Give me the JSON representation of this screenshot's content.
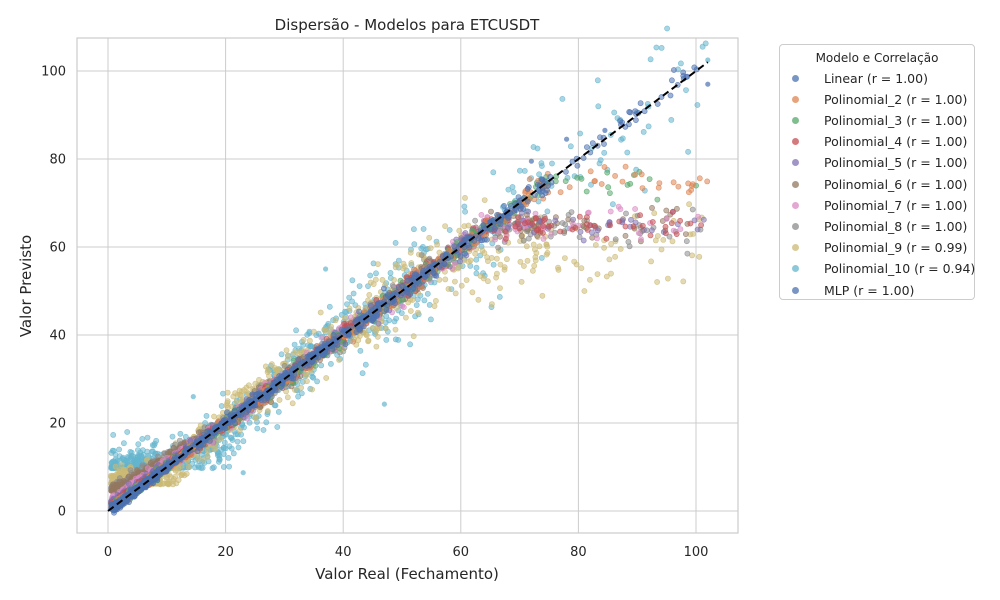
{
  "chart_data": {
    "type": "scatter",
    "title": "Dispersão - Modelos para ETCUSDT",
    "xlabel": "Valor Real (Fechamento)",
    "ylabel": "Valor Previsto",
    "xlim": [
      -5,
      107
    ],
    "ylim": [
      -5,
      107
    ],
    "xticks": [
      0,
      20,
      40,
      60,
      80,
      100
    ],
    "yticks": [
      0,
      20,
      40,
      60,
      80,
      100
    ],
    "grid": true,
    "legend": {
      "title": "Modelo e Correlação",
      "placement": "outside-right"
    },
    "reference_line": {
      "style": "dashed",
      "color": "#000000",
      "from": [
        0,
        0
      ],
      "to": [
        102,
        102
      ]
    },
    "series": [
      {
        "name": "Linear (r = 1.00)",
        "color": "#4c72b0",
        "kind": "linear_noise",
        "noise": 0.6,
        "floor": null,
        "points": [
          [
            1,
            1
          ],
          [
            10,
            10
          ],
          [
            20,
            20
          ],
          [
            30,
            30
          ],
          [
            40,
            40
          ],
          [
            50,
            50
          ],
          [
            60,
            60
          ],
          [
            70,
            70
          ],
          [
            80,
            80
          ],
          [
            102,
            102
          ]
        ]
      },
      {
        "name": "Polinomial_2 (r = 1.00)",
        "color": "#dd8452",
        "kind": "linear_noise",
        "noise": 0.7,
        "floor": null,
        "points": [
          [
            1,
            1
          ],
          [
            15,
            15
          ],
          [
            35,
            35
          ],
          [
            55,
            55
          ],
          [
            75,
            75
          ]
        ]
      },
      {
        "name": "Polinomial_3 (r = 1.00)",
        "color": "#55a868",
        "kind": "linear_noise",
        "noise": 0.7,
        "floor": null,
        "points": [
          [
            1,
            1
          ],
          [
            15,
            15
          ],
          [
            35,
            35
          ],
          [
            55,
            55
          ],
          [
            75,
            75
          ]
        ]
      },
      {
        "name": "Polinomial_4 (r = 1.00)",
        "color": "#c44e52",
        "kind": "linear_noise",
        "noise": 0.7,
        "floor": 1.5,
        "points": [
          [
            1,
            1.5
          ],
          [
            20,
            20
          ],
          [
            45,
            45
          ],
          [
            65,
            65
          ]
        ]
      },
      {
        "name": "Polinomial_5 (r = 1.00)",
        "color": "#8172b3",
        "kind": "linear_noise",
        "noise": 0.8,
        "floor": 2.0,
        "points": [
          [
            1,
            2
          ],
          [
            20,
            20
          ],
          [
            45,
            45
          ],
          [
            65,
            65
          ]
        ]
      },
      {
        "name": "Polinomial_6 (r = 1.00)",
        "color": "#937860",
        "kind": "linear_noise",
        "noise": 0.9,
        "floor": 4.5,
        "points": [
          [
            1,
            4.5
          ],
          [
            20,
            20
          ],
          [
            45,
            45
          ],
          [
            65,
            65
          ]
        ]
      },
      {
        "name": "Polinomial_7 (r = 1.00)",
        "color": "#da8bc3",
        "kind": "linear_noise",
        "noise": 0.9,
        "floor": 2.5,
        "points": [
          [
            1,
            2.5
          ],
          [
            20,
            20
          ],
          [
            45,
            45
          ],
          [
            65,
            65
          ]
        ]
      },
      {
        "name": "Polinomial_8 (r = 1.00)",
        "color": "#8c8c8c",
        "kind": "linear_noise",
        "noise": 1.0,
        "floor": 5.0,
        "points": [
          [
            1,
            5
          ],
          [
            20,
            20
          ],
          [
            45,
            45
          ],
          [
            65,
            65
          ]
        ]
      },
      {
        "name": "Polinomial_9 (r = 0.99)",
        "color": "#ccb974",
        "kind": "linear_noise",
        "noise": 2.6,
        "floor": 6.0,
        "points": [
          [
            1,
            6
          ],
          [
            10,
            8
          ],
          [
            20,
            21
          ],
          [
            30,
            31
          ],
          [
            40,
            40
          ],
          [
            50,
            50
          ],
          [
            60,
            60
          ]
        ]
      },
      {
        "name": "Polinomial_10 (r = 0.94)",
        "color": "#64b5cd",
        "kind": "linear_noise",
        "noise": 3.6,
        "floor": 9.7,
        "points": [
          [
            1,
            9.7
          ],
          [
            10,
            9.8
          ],
          [
            20,
            17
          ],
          [
            30,
            31
          ],
          [
            40,
            40
          ],
          [
            50,
            50
          ],
          [
            60,
            60
          ],
          [
            78,
            78
          ],
          [
            102,
            102
          ]
        ]
      },
      {
        "name": "MLP (r = 1.00)",
        "color": "#4c72b0",
        "kind": "linear_noise",
        "noise": 0.7,
        "floor": null,
        "points": [
          [
            1,
            0.5
          ],
          [
            10,
            10
          ],
          [
            20,
            20
          ],
          [
            30,
            30
          ],
          [
            40,
            40
          ],
          [
            50,
            50
          ],
          [
            60,
            60
          ],
          [
            70,
            70
          ],
          [
            80,
            80
          ],
          [
            87,
            87
          ],
          [
            102,
            102
          ]
        ]
      }
    ],
    "notable_points": [
      {
        "x": 14.5,
        "y": 26,
        "series": "Polinomial_10 (r = 0.94)"
      },
      {
        "x": 23,
        "y": 8.7,
        "series": "Polinomial_10 (r = 0.94)"
      },
      {
        "x": 47,
        "y": 24.3,
        "series": "Polinomial_10 (r = 0.94)"
      },
      {
        "x": 37,
        "y": 55,
        "series": "Polinomial_10 (r = 0.94)"
      },
      {
        "x": 102,
        "y": 97,
        "series": "Linear (r = 1.00)"
      },
      {
        "x": 102,
        "y": 102.5,
        "series": "Polinomial_10 (r = 0.94)"
      },
      {
        "x": 84.5,
        "y": 86.5,
        "series": "MLP (r = 1.00)"
      },
      {
        "x": 78,
        "y": 84.5,
        "series": "Linear (r = 1.00)"
      },
      {
        "x": 72,
        "y": 79.5,
        "series": "Linear (r = 1.00)"
      }
    ]
  }
}
